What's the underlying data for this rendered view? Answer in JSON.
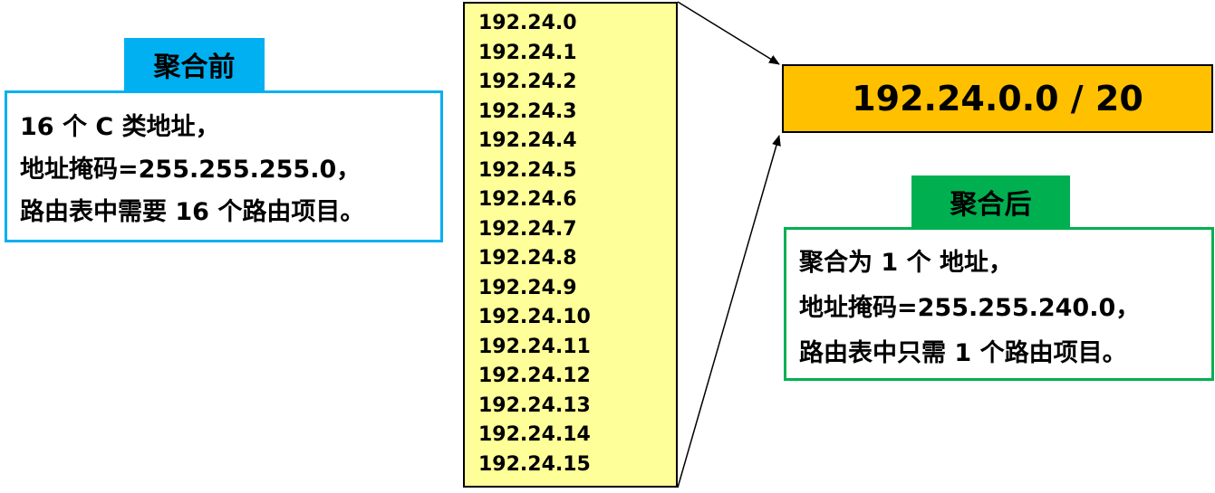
{
  "before": {
    "label": "聚合前",
    "lines": [
      "16 个 C 类地址，",
      "地址掩码=255.255.255.0，",
      "路由表中需要 16 个路由项目。"
    ]
  },
  "address_list": [
    "192.24.0",
    "192.24.1",
    "192.24.2",
    "192.24.3",
    "192.24.4",
    "192.24.5",
    "192.24.6",
    "192.24.7",
    "192.24.8",
    "192.24.9",
    "192.24.10",
    "192.24.11",
    "192.24.12",
    "192.24.13",
    "192.24.14",
    "192.24.15"
  ],
  "result": {
    "prefix": "192.24.0.0 / 20"
  },
  "after": {
    "label": "聚合后",
    "lines": [
      "聚合为 1 个 地址，",
      "地址掩码=255.255.240.0，",
      "路由表中只需 1 个路由项目。"
    ]
  },
  "colors": {
    "before_accent": "#00b0f0",
    "after_accent": "#00b050",
    "list_fill": "#ffff99",
    "result_fill": "#ffc000"
  }
}
